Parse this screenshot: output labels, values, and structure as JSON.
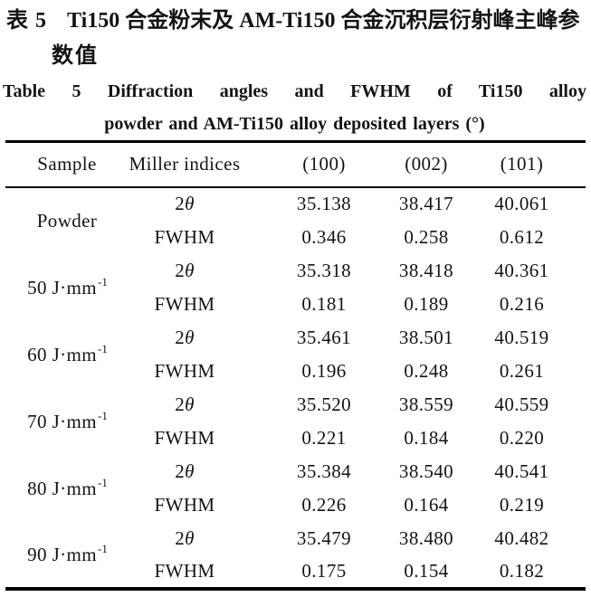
{
  "colors": {
    "background": "#ffffff",
    "text": "#141414",
    "rule": "#000000"
  },
  "title_zh": {
    "label": "表 5",
    "line1": "Ti150 合金粉末及 AM-Ti150 合金沉积层衍射峰主峰参",
    "line2": "数值"
  },
  "title_en": {
    "line1": "Table 5 Diffraction angles and FWHM of Ti150 alloy",
    "line2": "powder and AM-Ti150 alloy deposited layers (°)"
  },
  "table": {
    "headers": [
      "Sample",
      "Miller indices",
      "(100)",
      "(002)",
      "(101)"
    ],
    "row_kinds": {
      "two_theta_num": "2",
      "two_theta_sym": "θ",
      "fwhm": "FWHM"
    },
    "groups": [
      {
        "sample": "Powder",
        "sample_sup": "",
        "two_theta": [
          "35.138",
          "38.417",
          "40.061"
        ],
        "fwhm": [
          "0.346",
          "0.258",
          "0.612"
        ]
      },
      {
        "sample": "50 J·mm",
        "sample_sup": "-1",
        "two_theta": [
          "35.318",
          "38.418",
          "40.361"
        ],
        "fwhm": [
          "0.181",
          "0.189",
          "0.216"
        ]
      },
      {
        "sample": "60 J·mm",
        "sample_sup": "-1",
        "two_theta": [
          "35.461",
          "38.501",
          "40.519"
        ],
        "fwhm": [
          "0.196",
          "0.248",
          "0.261"
        ]
      },
      {
        "sample": "70 J·mm",
        "sample_sup": "-1",
        "two_theta": [
          "35.520",
          "38.559",
          "40.559"
        ],
        "fwhm": [
          "0.221",
          "0.184",
          "0.220"
        ]
      },
      {
        "sample": "80 J·mm",
        "sample_sup": "-1",
        "two_theta": [
          "35.384",
          "38.540",
          "40.541"
        ],
        "fwhm": [
          "0.226",
          "0.164",
          "0.219"
        ]
      },
      {
        "sample": "90 J·mm",
        "sample_sup": "-1",
        "two_theta": [
          "35.479",
          "38.480",
          "40.482"
        ],
        "fwhm": [
          "0.175",
          "0.154",
          "0.182"
        ]
      }
    ]
  }
}
